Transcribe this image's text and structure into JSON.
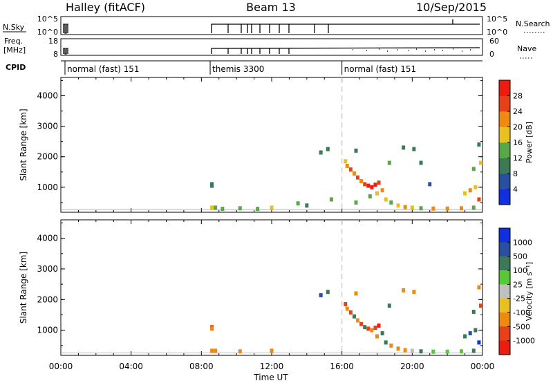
{
  "header": {
    "station": "Halley (fitACF)",
    "beam": "Beam 13",
    "date": "10/Sep/2015"
  },
  "nsky_panel": {
    "left_label": "N.Sky",
    "right_label": "N.Search",
    "left_ticks": [
      "10^5",
      "10^0"
    ],
    "right_ticks": [
      "10^5",
      "10^0"
    ]
  },
  "freq_panel": {
    "left_label_top": "Freq.",
    "left_label_bottom": "[MHz]",
    "left_ticks": [
      "18",
      "8"
    ],
    "right_label": "Nave",
    "right_ticks": [
      "60",
      "0"
    ]
  },
  "cpid": {
    "label": "CPID",
    "segments": [
      {
        "start_hour": 0.0,
        "label": "normal (fast) 151"
      },
      {
        "start_hour": 8.5,
        "label": "themis 3300"
      },
      {
        "start_hour": 16.0,
        "label": "normal (fast) 151"
      }
    ]
  },
  "time_axis": {
    "label": "Time UT",
    "tick_labels": [
      "00:00",
      "04:00",
      "08:00",
      "12:00",
      "16:00",
      "20:00",
      "00:00"
    ]
  },
  "chart_data": [
    {
      "type": "heatmap",
      "title": "",
      "xlabel": "",
      "ylabel": "Slant Range [km]",
      "xlim": [
        0,
        24
      ],
      "ylim": [
        180,
        4600
      ],
      "y_ticks": [
        "1000",
        "2000",
        "3000",
        "4000"
      ],
      "colorbar": {
        "label": "Power [dB]",
        "ticks": [
          "4",
          "8",
          "12",
          "16",
          "20",
          "24",
          "28"
        ],
        "colors": [
          "#1030e0",
          "#2a4fa0",
          "#3b7a55",
          "#58a848",
          "#e8c020",
          "#ef8a10",
          "#e84018",
          "#ee1c10"
        ]
      },
      "points": [
        {
          "x": 8.6,
          "y": 1100,
          "v": 8
        },
        {
          "x": 8.6,
          "y": 1050,
          "v": 10
        },
        {
          "x": 8.6,
          "y": 330,
          "v": 18
        },
        {
          "x": 8.8,
          "y": 330,
          "v": 14
        },
        {
          "x": 9.2,
          "y": 290,
          "v": 14
        },
        {
          "x": 10.2,
          "y": 310,
          "v": 12
        },
        {
          "x": 11.2,
          "y": 290,
          "v": 14
        },
        {
          "x": 12.0,
          "y": 330,
          "v": 16
        },
        {
          "x": 13.5,
          "y": 470,
          "v": 12
        },
        {
          "x": 14.0,
          "y": 400,
          "v": 8
        },
        {
          "x": 14.8,
          "y": 2140,
          "v": 8
        },
        {
          "x": 15.2,
          "y": 2250,
          "v": 8
        },
        {
          "x": 15.4,
          "y": 600,
          "v": 12
        },
        {
          "x": 16.2,
          "y": 1850,
          "v": 16
        },
        {
          "x": 16.3,
          "y": 1700,
          "v": 20
        },
        {
          "x": 16.5,
          "y": 1580,
          "v": 24
        },
        {
          "x": 16.7,
          "y": 1450,
          "v": 20
        },
        {
          "x": 16.9,
          "y": 1320,
          "v": 24
        },
        {
          "x": 17.1,
          "y": 1200,
          "v": 20
        },
        {
          "x": 17.3,
          "y": 1100,
          "v": 26
        },
        {
          "x": 17.5,
          "y": 1050,
          "v": 28
        },
        {
          "x": 17.7,
          "y": 1000,
          "v": 30
        },
        {
          "x": 17.9,
          "y": 1080,
          "v": 28
        },
        {
          "x": 18.1,
          "y": 1150,
          "v": 24
        },
        {
          "x": 18.3,
          "y": 900,
          "v": 20
        },
        {
          "x": 18.0,
          "y": 800,
          "v": 16
        },
        {
          "x": 17.6,
          "y": 700,
          "v": 12
        },
        {
          "x": 18.5,
          "y": 600,
          "v": 16
        },
        {
          "x": 18.8,
          "y": 500,
          "v": 12
        },
        {
          "x": 19.2,
          "y": 400,
          "v": 16
        },
        {
          "x": 19.6,
          "y": 350,
          "v": 20
        },
        {
          "x": 20.0,
          "y": 330,
          "v": 16
        },
        {
          "x": 20.5,
          "y": 310,
          "v": 12
        },
        {
          "x": 21.2,
          "y": 300,
          "v": 20
        },
        {
          "x": 22.0,
          "y": 300,
          "v": 22
        },
        {
          "x": 22.8,
          "y": 310,
          "v": 20
        },
        {
          "x": 23.5,
          "y": 330,
          "v": 12
        },
        {
          "x": 23.0,
          "y": 800,
          "v": 16
        },
        {
          "x": 23.3,
          "y": 900,
          "v": 20
        },
        {
          "x": 23.6,
          "y": 1000,
          "v": 16
        },
        {
          "x": 23.8,
          "y": 600,
          "v": 24
        },
        {
          "x": 23.5,
          "y": 1600,
          "v": 12
        },
        {
          "x": 23.9,
          "y": 1800,
          "v": 16
        },
        {
          "x": 23.8,
          "y": 2400,
          "v": 8
        },
        {
          "x": 16.8,
          "y": 2200,
          "v": 8
        },
        {
          "x": 19.5,
          "y": 2300,
          "v": 8
        },
        {
          "x": 20.1,
          "y": 2250,
          "v": 8
        },
        {
          "x": 20.5,
          "y": 1800,
          "v": 8
        },
        {
          "x": 21.0,
          "y": 1100,
          "v": 4
        },
        {
          "x": 16.8,
          "y": 500,
          "v": 12
        },
        {
          "x": 18.7,
          "y": 1800,
          "v": 12
        }
      ]
    },
    {
      "type": "heatmap",
      "title": "",
      "xlabel": "Time UT",
      "ylabel": "Slant Range [km]",
      "xlim": [
        0,
        24
      ],
      "ylim": [
        180,
        4600
      ],
      "y_ticks": [
        "1000",
        "2000",
        "3000",
        "4000"
      ],
      "colorbar": {
        "label": "Velocity [m s⁻¹]",
        "ticks": [
          "1000",
          "500",
          "100",
          "25",
          "-25",
          "-100",
          "-500",
          "-1000"
        ],
        "colors": [
          "#1030e0",
          "#2a4fa0",
          "#3b7a55",
          "#58c838",
          "#c0c0c0",
          "#e8c020",
          "#ef8a10",
          "#e84018",
          "#ee1c10"
        ]
      },
      "points": [
        {
          "x": 8.6,
          "y": 1100,
          "v": -500
        },
        {
          "x": 8.6,
          "y": 1050,
          "v": -300
        },
        {
          "x": 8.6,
          "y": 330,
          "v": -100
        },
        {
          "x": 8.8,
          "y": 330,
          "v": -100
        },
        {
          "x": 10.2,
          "y": 310,
          "v": -100
        },
        {
          "x": 12.0,
          "y": 330,
          "v": -100
        },
        {
          "x": 14.8,
          "y": 2140,
          "v": 500
        },
        {
          "x": 15.2,
          "y": 2250,
          "v": 100
        },
        {
          "x": 16.2,
          "y": 1850,
          "v": -500
        },
        {
          "x": 16.3,
          "y": 1700,
          "v": -100
        },
        {
          "x": 16.5,
          "y": 1580,
          "v": -500
        },
        {
          "x": 16.7,
          "y": 1450,
          "v": 100
        },
        {
          "x": 16.9,
          "y": 1320,
          "v": -100
        },
        {
          "x": 17.1,
          "y": 1200,
          "v": -500
        },
        {
          "x": 17.3,
          "y": 1100,
          "v": 100
        },
        {
          "x": 17.5,
          "y": 1050,
          "v": -500
        },
        {
          "x": 17.7,
          "y": 1000,
          "v": -100
        },
        {
          "x": 17.9,
          "y": 1080,
          "v": -500
        },
        {
          "x": 18.1,
          "y": 1150,
          "v": -1000
        },
        {
          "x": 18.3,
          "y": 900,
          "v": 100
        },
        {
          "x": 18.0,
          "y": 800,
          "v": -100
        },
        {
          "x": 18.5,
          "y": 600,
          "v": 100
        },
        {
          "x": 18.8,
          "y": 500,
          "v": -100
        },
        {
          "x": 19.2,
          "y": 400,
          "v": -100
        },
        {
          "x": 19.6,
          "y": 350,
          "v": -100
        },
        {
          "x": 20.0,
          "y": 330,
          "v": 0
        },
        {
          "x": 20.5,
          "y": 310,
          "v": 100
        },
        {
          "x": 21.2,
          "y": 300,
          "v": 50
        },
        {
          "x": 22.0,
          "y": 300,
          "v": 60
        },
        {
          "x": 22.8,
          "y": 310,
          "v": 50
        },
        {
          "x": 23.5,
          "y": 330,
          "v": 100
        },
        {
          "x": 23.0,
          "y": 800,
          "v": 100
        },
        {
          "x": 23.3,
          "y": 900,
          "v": 500
        },
        {
          "x": 23.6,
          "y": 1000,
          "v": 100
        },
        {
          "x": 23.8,
          "y": 600,
          "v": 1000
        },
        {
          "x": 23.5,
          "y": 1600,
          "v": 100
        },
        {
          "x": 23.9,
          "y": 1800,
          "v": -500
        },
        {
          "x": 23.8,
          "y": 2400,
          "v": -100
        },
        {
          "x": 16.8,
          "y": 2200,
          "v": -100
        },
        {
          "x": 19.5,
          "y": 2300,
          "v": -100
        },
        {
          "x": 20.1,
          "y": 2250,
          "v": -100
        },
        {
          "x": 18.7,
          "y": 1800,
          "v": 100
        }
      ]
    }
  ]
}
